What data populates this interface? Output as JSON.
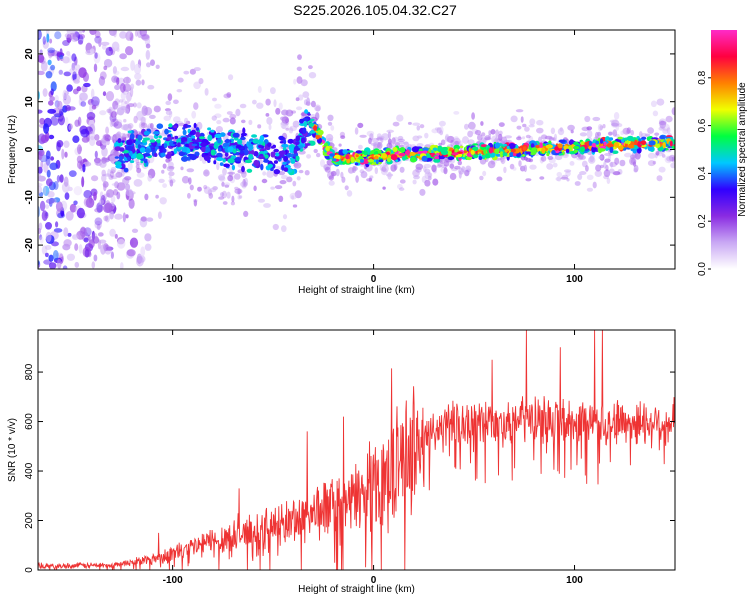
{
  "title": "S225.2026.105.04.32.C27",
  "chart_data": [
    {
      "type": "heatmap",
      "xlabel": "Height of straight line (km)",
      "ylabel": "Frequency (Hz)",
      "xlim": [
        -167,
        150
      ],
      "ylim": [
        -25,
        25
      ],
      "x_ticks": [
        "-100",
        "0",
        "100"
      ],
      "x_tick_values": [
        -100,
        0,
        100
      ],
      "y_ticks": [
        "-20",
        "-10",
        "0",
        "10",
        "20"
      ],
      "y_tick_values": [
        -20,
        -10,
        0,
        10,
        20
      ],
      "colorbar": {
        "label": "Normalized spectral amplitude",
        "range": [
          0,
          1
        ],
        "ticks": [
          "0.0",
          "0.2",
          "0.4",
          "0.6",
          "0.8"
        ],
        "tick_values": [
          0.0,
          0.2,
          0.4,
          0.6,
          0.8
        ],
        "colors": [
          "#ffffff",
          "#c9a8f4",
          "#8a2be2",
          "#3000ff",
          "#00c8ff",
          "#00ff40",
          "#f0ff00",
          "#ff8000",
          "#ff0040",
          "#ff2bc8"
        ]
      },
      "ridge": {
        "description_x": [
          -130,
          -100,
          -70,
          -40,
          -32,
          -20,
          0,
          20,
          50,
          80,
          100,
          120,
          150
        ],
        "frequency_hz": [
          -1,
          2,
          0,
          -2,
          6,
          -2,
          -1.5,
          -1,
          -0.5,
          0,
          0.5,
          1,
          1.5
        ]
      }
    },
    {
      "type": "line",
      "xlabel": "Height of straight line (km)",
      "ylabel": "SNR (10 * v/v)",
      "xlim": [
        -167,
        150
      ],
      "ylim": [
        0,
        970
      ],
      "x_ticks": [
        "-100",
        "0",
        "100"
      ],
      "x_tick_values": [
        -100,
        0,
        100
      ],
      "y_ticks": [
        "0",
        "200",
        "400",
        "600",
        "800"
      ],
      "y_tick_values": [
        0,
        200,
        400,
        600,
        800
      ],
      "line_color": "#ee3333",
      "series": [
        {
          "name": "SNR",
          "trend_x": [
            -167,
            -130,
            -110,
            -90,
            -70,
            -50,
            -40,
            -30,
            -20,
            -10,
            0,
            10,
            20,
            30,
            40,
            60,
            80,
            100,
            120,
            150
          ],
          "trend_y": [
            15,
            20,
            45,
            90,
            140,
            170,
            200,
            230,
            260,
            280,
            350,
            420,
            500,
            560,
            590,
            600,
            610,
            600,
            600,
            590
          ],
          "peak_x": [
            -107,
            -67,
            -33,
            -15,
            9,
            59,
            76,
            93,
            110,
            114
          ],
          "peak_y": [
            150,
            330,
            560,
            620,
            815,
            850,
            970,
            900,
            970,
            980
          ]
        }
      ]
    }
  ]
}
